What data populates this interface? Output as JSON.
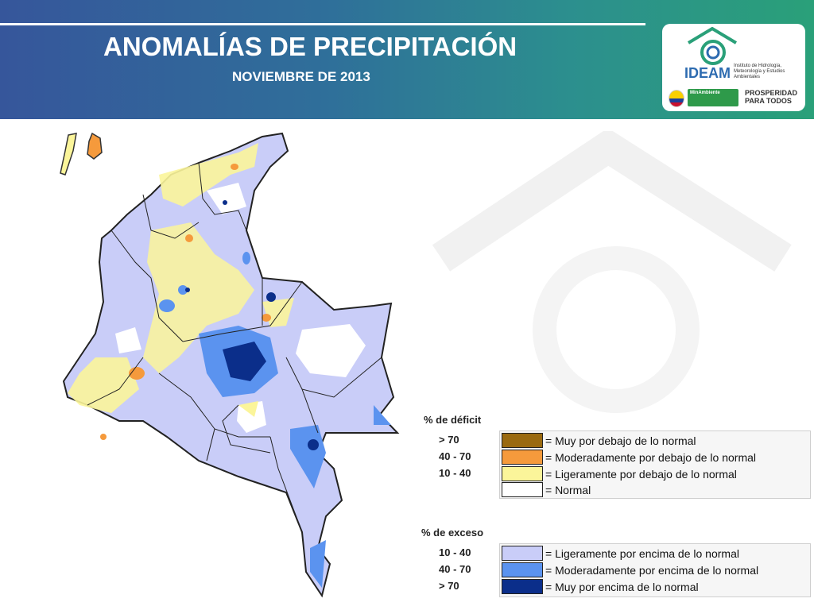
{
  "header": {
    "title": "ANOMALÍAS DE PRECIPITACIÓN",
    "subtitle": "NOVIEMBRE DE 2013"
  },
  "logos": {
    "ideam_name": "IDEAM",
    "ideam_description": "Instituto de Hidrología, Meteorología y Estudios Ambientales",
    "ministry": "MinAmbiente",
    "slogan": "PROSPERIDAD PARA TODOS"
  },
  "colors": {
    "banner_start": "#36569b",
    "banner_end": "#2aa079",
    "deficit_strong": "#9a6a10",
    "deficit_moderate": "#f59a3c",
    "deficit_slight": "#fbf59a",
    "normal": "#ffffff",
    "excess_slight": "#c9cdf8",
    "excess_moderate": "#5b93ef",
    "excess_strong": "#0b2e8a"
  },
  "legend": {
    "deficit": {
      "heading": "% de déficit",
      "items": [
        {
          "range": "> 70",
          "label": "= Muy por debajo de lo normal",
          "color": "#9a6a10"
        },
        {
          "range": "40 -  70",
          "label": "= Moderadamente por debajo de lo normal",
          "color": "#f59a3c"
        },
        {
          "range": "10 -  40",
          "label": "= Ligeramente por debajo de lo normal",
          "color": "#fbf59a"
        },
        {
          "range": "",
          "label": "= Normal",
          "color": "#ffffff"
        }
      ]
    },
    "excess": {
      "heading": "% de exceso",
      "items": [
        {
          "range": "10 -  40",
          "label": "= Ligeramente por encima de lo normal",
          "color": "#c9cdf8"
        },
        {
          "range": "40 -  70",
          "label": "= Moderadamente por encima de lo normal",
          "color": "#5b93ef"
        },
        {
          "range": "> 70",
          "label": "= Muy por encima de lo normal",
          "color": "#0b2e8a"
        }
      ]
    }
  }
}
